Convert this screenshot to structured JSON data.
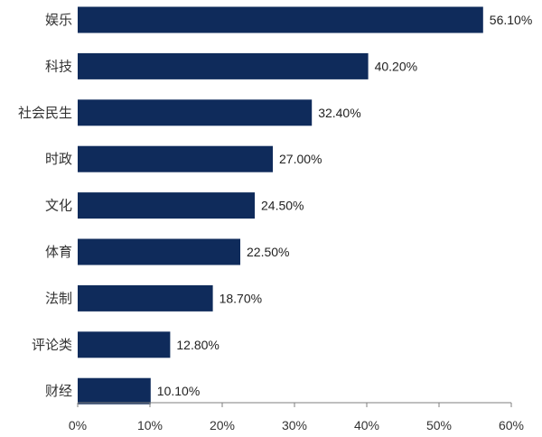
{
  "chart_data": {
    "type": "bar",
    "orientation": "horizontal",
    "categories": [
      "娱乐",
      "科技",
      "社会民生",
      "时政",
      "文化",
      "体育",
      "法制",
      "评论类",
      "财经"
    ],
    "values": [
      56.1,
      40.2,
      32.4,
      27.0,
      24.5,
      22.5,
      18.7,
      12.8,
      10.1
    ],
    "data_labels": [
      "56.10%",
      "40.20%",
      "32.40%",
      "27.00%",
      "24.50%",
      "22.50%",
      "18.70%",
      "12.80%",
      "10.10%"
    ],
    "title": "",
    "xlabel": "",
    "ylabel": "",
    "xlim": [
      0,
      60
    ],
    "x_ticks": [
      0,
      10,
      20,
      30,
      40,
      50,
      60
    ],
    "x_tick_labels": [
      "0%",
      "10%",
      "20%",
      "30%",
      "40%",
      "50%",
      "60%"
    ],
    "grid": false,
    "legend": "none",
    "bar_color": "#0f2b5b",
    "axis_color": "#7f7f7f"
  }
}
